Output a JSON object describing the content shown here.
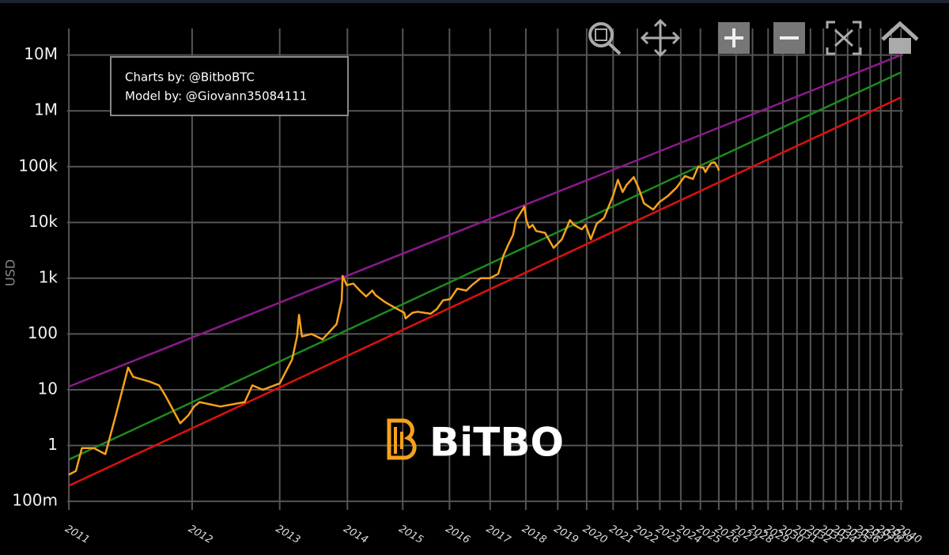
{
  "chart_data": {
    "type": "line",
    "xscale": "log",
    "yscale": "log",
    "grid": true,
    "ylabel": "USD",
    "annotation": [
      "Charts by: @BitboBTC",
      "Model by: @Giovann35084111"
    ],
    "watermark": "BiTBO",
    "xlim": [
      724,
      11400
    ],
    "ylim": [
      0.07,
      30000000
    ],
    "xticks": [
      {
        "value": 728,
        "label": "2011"
      },
      {
        "value": 1093,
        "label": "2012"
      },
      {
        "value": 1459,
        "label": "2013"
      },
      {
        "value": 1824,
        "label": "2014"
      },
      {
        "value": 2189,
        "label": "2015"
      },
      {
        "value": 2554,
        "label": "2016"
      },
      {
        "value": 2920,
        "label": "2017"
      },
      {
        "value": 3285,
        "label": "2018"
      },
      {
        "value": 3650,
        "label": "2019"
      },
      {
        "value": 4015,
        "label": "2020"
      },
      {
        "value": 4381,
        "label": "2021"
      },
      {
        "value": 4746,
        "label": "2022"
      },
      {
        "value": 5111,
        "label": "2023"
      },
      {
        "value": 5476,
        "label": "2024"
      },
      {
        "value": 5842,
        "label": "2025"
      },
      {
        "value": 6207,
        "label": "2026"
      },
      {
        "value": 6572,
        "label": "2027"
      },
      {
        "value": 6937,
        "label": "2028"
      },
      {
        "value": 7303,
        "label": "2029"
      },
      {
        "value": 7668,
        "label": "2030"
      },
      {
        "value": 8033,
        "label": "2031"
      },
      {
        "value": 8398,
        "label": "2032"
      },
      {
        "value": 8764,
        "label": "2033"
      },
      {
        "value": 9129,
        "label": "2034"
      },
      {
        "value": 9494,
        "label": "2035"
      },
      {
        "value": 9859,
        "label": "2036"
      },
      {
        "value": 10225,
        "label": "2037"
      },
      {
        "value": 10590,
        "label": "2038"
      },
      {
        "value": 10955,
        "label": "2039"
      },
      {
        "value": 11320,
        "label": "2040"
      }
    ],
    "yticks": [
      {
        "value": 0.1,
        "label": "100m"
      },
      1,
      10,
      100,
      {
        "value": 1000,
        "label": "1k"
      },
      {
        "value": 10000,
        "label": "10k"
      },
      {
        "value": 100000,
        "label": "100k"
      },
      {
        "value": 1000000,
        "label": "1M"
      },
      {
        "value": 10000000,
        "label": "10M"
      }
    ],
    "series": [
      {
        "color": "#8b1a8b",
        "x": [
          728,
          11320
        ],
        "values": [
          11.4,
          10000000
        ]
      },
      {
        "color": "#1e8a1e",
        "x": [
          728,
          11320
        ],
        "values": [
          0.56,
          4900000
        ]
      },
      {
        "color": "#e01010",
        "x": [
          728,
          11320
        ],
        "values": [
          0.19,
          1740000
        ]
      },
      {
        "color": "#f7a21b",
        "x": [
          728,
          745,
          760,
          790,
          821,
          850,
          885,
          900,
          950,
          980,
          1000,
          1030,
          1051,
          1080,
          1100,
          1120,
          1200,
          1300,
          1333,
          1380,
          1459,
          1520,
          1545,
          1555,
          1570,
          1620,
          1680,
          1720,
          1760,
          1790,
          1795,
          1820,
          1860,
          1900,
          1940,
          1980,
          2000,
          2060,
          2100,
          2200,
          2210,
          2260,
          2300,
          2400,
          2450,
          2500,
          2560,
          2620,
          2700,
          2750,
          2830,
          2919,
          3000,
          3050,
          3100,
          3150,
          3180,
          3270,
          3290,
          3320,
          3360,
          3400,
          3500,
          3600,
          3700,
          3800,
          3850,
          3950,
          4000,
          4070,
          4150,
          4250,
          4380,
          4450,
          4520,
          4580,
          4690,
          4770,
          4850,
          5000,
          5100,
          5250,
          5400,
          5550,
          5700,
          5800,
          5900,
          5940,
          6000,
          6050,
          6120,
          6180,
          6210
        ],
        "values": [
          0.3,
          0.35,
          0.9,
          0.9,
          0.7,
          3.5,
          25,
          17,
          14,
          12,
          8,
          4,
          2.5,
          3.5,
          5,
          6,
          5,
          6,
          12,
          10,
          13,
          35,
          90,
          220,
          90,
          100,
          80,
          110,
          150,
          400,
          1100,
          750,
          800,
          600,
          470,
          600,
          500,
          380,
          330,
          240,
          190,
          240,
          250,
          230,
          280,
          400,
          420,
          650,
          600,
          750,
          1000,
          1000,
          1200,
          2500,
          4000,
          6000,
          11000,
          19000,
          11000,
          8000,
          9000,
          7000,
          6500,
          3500,
          5000,
          11000,
          9000,
          7500,
          9000,
          5000,
          9500,
          12000,
          30000,
          58000,
          35000,
          47000,
          65000,
          40000,
          22000,
          17000,
          23000,
          30000,
          42000,
          68000,
          60000,
          100000,
          95000,
          80000,
          100000,
          115000,
          120000,
          100000,
          85000
        ]
      }
    ]
  }
}
